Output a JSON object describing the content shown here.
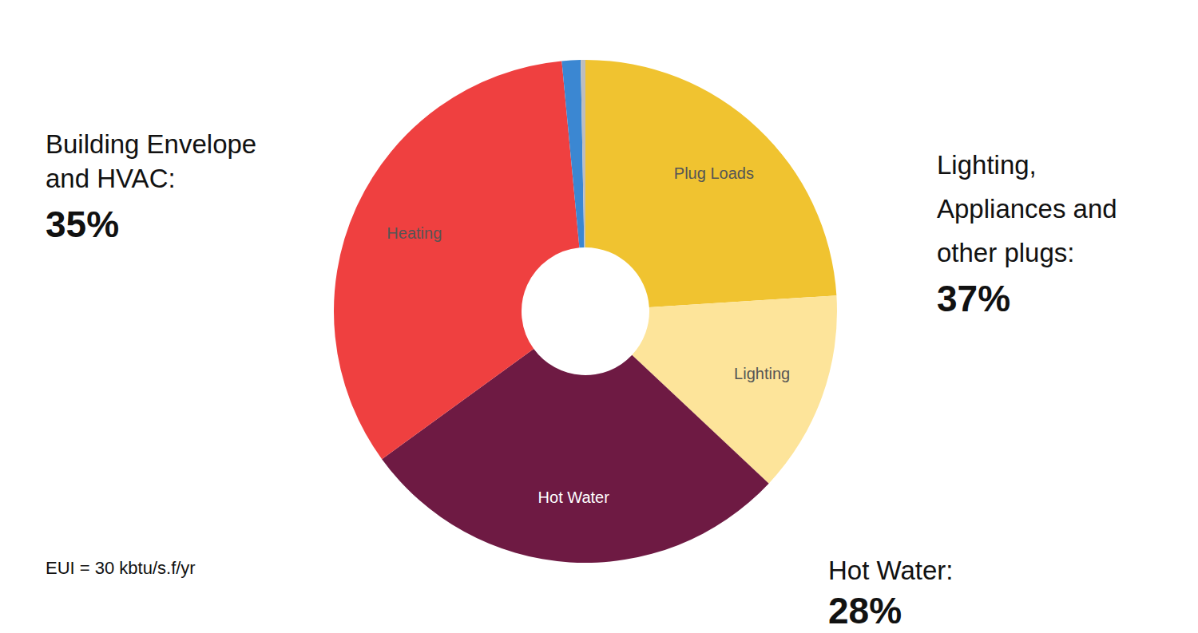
{
  "chart_data": {
    "type": "pie",
    "categories": [
      "Plug Loads",
      "Lighting",
      "Hot Water",
      "Heating",
      null,
      null
    ],
    "values": [
      24,
      13,
      28,
      33.5,
      1.2,
      0.3
    ],
    "colors": [
      "#f0c330",
      "#fde49a",
      "#6e1a43",
      "#ef4040",
      "#3b87d2",
      "#bdbdbd"
    ],
    "data_labels": false,
    "annotations": [
      {
        "text": [
          "Building Envelope",
          "and HVAC:"
        ],
        "value": 35,
        "label": "35%"
      },
      {
        "text": [
          "Lighting,",
          "Appliances and",
          "other plugs:"
        ],
        "value": 37,
        "label": "37%"
      },
      {
        "text": [
          "Hot Water:"
        ],
        "value": 28,
        "label": "28%"
      },
      {
        "text": [
          "EUI = 30 kbtu/s.f/yr"
        ]
      }
    ]
  }
}
